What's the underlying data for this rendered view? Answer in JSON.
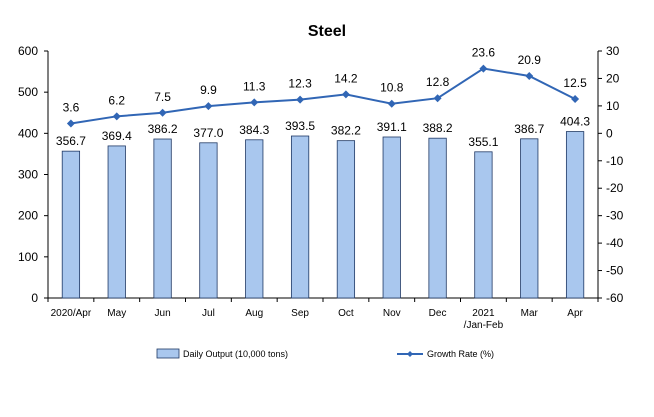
{
  "chart_data": {
    "type": "bar",
    "title": "Steel",
    "categories": [
      "2020/Apr",
      "May",
      "Jun",
      "Jul",
      "Aug",
      "Sep",
      "Oct",
      "Nov",
      "Dec",
      "2021\n/Jan-Feb",
      "Mar",
      "Apr"
    ],
    "series": [
      {
        "name": "Daily Output (10,000 tons)",
        "type": "bar",
        "axis": "left",
        "values": [
          356.7,
          369.4,
          386.2,
          377.0,
          384.3,
          393.5,
          382.2,
          391.1,
          388.2,
          355.1,
          386.7,
          404.3
        ],
        "labels": [
          "356.7",
          "369.4",
          "386.2",
          "377.0",
          "384.3",
          "393.5",
          "382.2",
          "391.1",
          "388.2",
          "355.1",
          "386.7",
          "404.3"
        ],
        "color": "#a9c7ee"
      },
      {
        "name": "Growth Rate (%)",
        "type": "line",
        "axis": "right",
        "values": [
          3.6,
          6.2,
          7.5,
          9.9,
          11.3,
          12.3,
          14.2,
          10.8,
          12.8,
          23.6,
          20.9,
          12.5
        ],
        "labels": [
          "3.6",
          "6.2",
          "7.5",
          "9.9",
          "11.3",
          "12.3",
          "14.2",
          "10.8",
          "12.8",
          "23.6",
          "20.9",
          "12.5"
        ],
        "color": "#3166b5"
      }
    ],
    "y_left": {
      "min": 0,
      "max": 600,
      "step": 100,
      "ticks": [
        "0",
        "100",
        "200",
        "300",
        "400",
        "500",
        "600"
      ]
    },
    "y_right": {
      "min": -60,
      "max": 30,
      "step": 10,
      "ticks": [
        "-60",
        "-50",
        "-40",
        "-30",
        "-20",
        "-10",
        "0",
        "10",
        "20",
        "30"
      ]
    },
    "grid": false,
    "legend_position": "bottom"
  }
}
